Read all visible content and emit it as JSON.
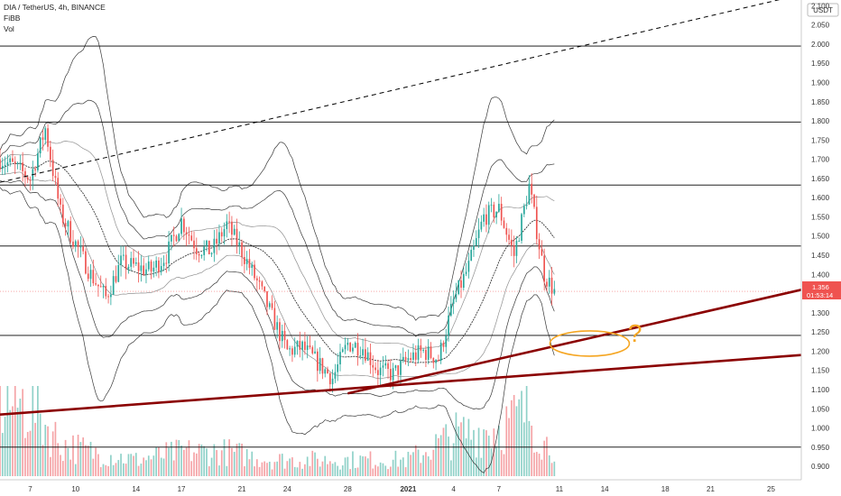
{
  "header": {
    "symbol_line": "DIA / TetherUS, 4h, BINANCE",
    "indicator_1": "FiBB",
    "indicator_2": "Vol",
    "currency_label": "USDT"
  },
  "price_tag": {
    "price": "1.356",
    "countdown": "01:53:14",
    "color": "#ef5350"
  },
  "colors": {
    "up": "#26a69a",
    "down": "#ef5350",
    "up_vol": "#8fd1c8",
    "down_vol": "#f5a3a6",
    "trendline": "#8b0000",
    "band": "#222222",
    "annotation": "#f5a623",
    "grid_line": "#000000"
  },
  "chart_data": {
    "type": "candlestick",
    "y_axis": {
      "ylim": [
        0.865,
        2.115
      ],
      "ticks": [
        "0.900",
        "0.950",
        "1.000",
        "1.050",
        "1.100",
        "1.150",
        "1.200",
        "1.250",
        "1.300",
        "1.350",
        "1.400",
        "1.450",
        "1.500",
        "1.550",
        "1.600",
        "1.650",
        "1.700",
        "1.750",
        "1.800",
        "1.850",
        "1.900",
        "1.950",
        "2.000",
        "2.050",
        "2.100"
      ]
    },
    "x_axis": {
      "range": [
        "2020-12-05",
        "2021-01-27"
      ],
      "labels": [
        {
          "date": "2020-12-07",
          "text": "7"
        },
        {
          "date": "2020-12-10",
          "text": "10"
        },
        {
          "date": "2020-12-14",
          "text": "14"
        },
        {
          "date": "2020-12-17",
          "text": "17"
        },
        {
          "date": "2020-12-21",
          "text": "21"
        },
        {
          "date": "2020-12-24",
          "text": "24"
        },
        {
          "date": "2020-12-28",
          "text": "28"
        },
        {
          "date": "2021-01-01",
          "text": "2021"
        },
        {
          "date": "2021-01-04",
          "text": "4"
        },
        {
          "date": "2021-01-07",
          "text": "7"
        },
        {
          "date": "2021-01-11",
          "text": "11"
        },
        {
          "date": "2021-01-14",
          "text": "14"
        },
        {
          "date": "2021-01-18",
          "text": "18"
        },
        {
          "date": "2021-01-21",
          "text": "21"
        },
        {
          "date": "2021-01-25",
          "text": "25"
        }
      ]
    },
    "series": [
      {
        "type": "candlestick",
        "points": [
          {
            "x": "2020-12-05",
            "y": 1.7
          },
          {
            "x": "2020-12-06",
            "y": 1.68
          },
          {
            "x": "2020-12-07",
            "y": 1.65
          },
          {
            "x": "2020-12-08",
            "y": 1.78
          },
          {
            "x": "2020-12-09",
            "y": 1.56
          },
          {
            "x": "2020-12-10",
            "y": 1.48
          },
          {
            "x": "2020-12-11",
            "y": 1.4
          },
          {
            "x": "2020-12-12",
            "y": 1.34
          },
          {
            "x": "2020-12-13",
            "y": 1.43
          },
          {
            "x": "2020-12-14",
            "y": 1.42
          },
          {
            "x": "2020-12-15",
            "y": 1.41
          },
          {
            "x": "2020-12-16",
            "y": 1.45
          },
          {
            "x": "2020-12-17",
            "y": 1.54
          },
          {
            "x": "2020-12-18",
            "y": 1.47
          },
          {
            "x": "2020-12-19",
            "y": 1.46
          },
          {
            "x": "2020-12-20",
            "y": 1.53
          },
          {
            "x": "2020-12-21",
            "y": 1.46
          },
          {
            "x": "2020-12-22",
            "y": 1.38
          },
          {
            "x": "2020-12-23",
            "y": 1.29
          },
          {
            "x": "2020-12-24",
            "y": 1.2
          },
          {
            "x": "2020-12-25",
            "y": 1.21
          },
          {
            "x": "2020-12-26",
            "y": 1.17
          },
          {
            "x": "2020-12-27",
            "y": 1.13
          },
          {
            "x": "2020-12-28",
            "y": 1.22
          },
          {
            "x": "2020-12-29",
            "y": 1.21
          },
          {
            "x": "2020-12-30",
            "y": 1.15
          },
          {
            "x": "2020-12-31",
            "y": 1.14
          },
          {
            "x": "2021-01-01",
            "y": 1.18
          },
          {
            "x": "2021-01-02",
            "y": 1.2
          },
          {
            "x": "2021-01-03",
            "y": 1.18
          },
          {
            "x": "2021-01-04",
            "y": 1.33
          },
          {
            "x": "2021-01-05",
            "y": 1.42
          },
          {
            "x": "2021-01-06",
            "y": 1.55
          },
          {
            "x": "2021-01-07",
            "y": 1.57
          },
          {
            "x": "2021-01-08",
            "y": 1.45
          },
          {
            "x": "2021-01-09",
            "y": 1.63
          },
          {
            "x": "2021-01-10",
            "y": 1.4
          },
          {
            "x": "2021-01-10T16:00",
            "y": 1.356
          }
        ]
      },
      {
        "type": "area",
        "name": "Vol",
        "points": [
          {
            "x": "2020-12-07",
            "y": 0.09
          },
          {
            "x": "2020-12-09",
            "y": 0.04
          },
          {
            "x": "2020-12-11",
            "y": 0.03
          },
          {
            "x": "2020-12-14",
            "y": 0.02
          },
          {
            "x": "2020-12-17",
            "y": 0.03
          },
          {
            "x": "2020-12-20",
            "y": 0.03
          },
          {
            "x": "2020-12-23",
            "y": 0.02
          },
          {
            "x": "2020-12-27",
            "y": 0.02
          },
          {
            "x": "2021-01-01",
            "y": 0.02
          },
          {
            "x": "2021-01-04",
            "y": 0.05
          },
          {
            "x": "2021-01-07",
            "y": 0.06
          },
          {
            "x": "2021-01-09",
            "y": 0.08
          },
          {
            "x": "2021-01-10",
            "y": 0.04
          }
        ]
      }
    ],
    "horizontal_levels": [
      1.995,
      1.797,
      1.633,
      1.474,
      1.241,
      0.95
    ],
    "trendlines": [
      {
        "style": "solid-thick",
        "from": {
          "x": "2020-12-05",
          "y": 1.035
        },
        "to": {
          "x": "2021-01-27",
          "y": 1.19
        }
      },
      {
        "style": "solid-thick",
        "from": {
          "x": "2020-12-28",
          "y": 1.09
        },
        "to": {
          "x": "2021-01-27",
          "y": 1.36
        }
      },
      {
        "style": "dashed",
        "from": {
          "x": "2020-12-05",
          "y": 1.64
        },
        "to": {
          "x": "2021-01-26",
          "y": 2.12
        }
      }
    ],
    "annotations": [
      {
        "type": "ellipse",
        "x": "2021-01-13",
        "y": 1.22
      },
      {
        "type": "question-mark",
        "text": "?",
        "x": "2021-01-16",
        "y": 1.225
      }
    ]
  }
}
